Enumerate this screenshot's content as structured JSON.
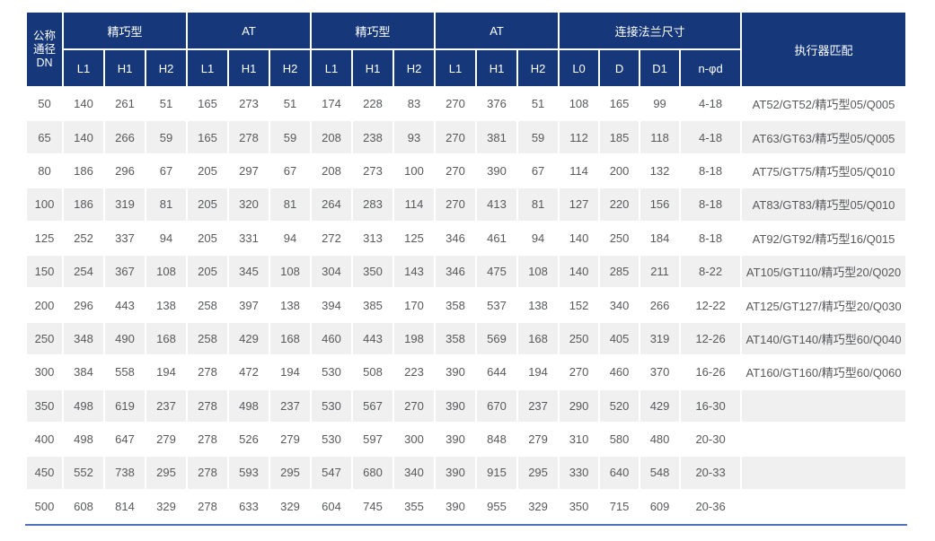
{
  "colors": {
    "header_bg": "#16387a",
    "header_text": "#ffffff",
    "stripe_bg": "#f0f0f0",
    "cell_text": "#58595b",
    "bottom_rule": "#4f74bd"
  },
  "table": {
    "dn_label": "公称\n通径\nDN",
    "actuator_label": "执行器匹配",
    "groups": [
      {
        "label": "精巧型",
        "cols": [
          "L1",
          "H1",
          "H2"
        ]
      },
      {
        "label": "AT",
        "cols": [
          "L1",
          "H1",
          "H2"
        ]
      },
      {
        "label": "精巧型",
        "cols": [
          "L1",
          "H1",
          "H2"
        ]
      },
      {
        "label": "AT",
        "cols": [
          "L1",
          "H1",
          "H2"
        ]
      },
      {
        "label": "连接法兰尺寸",
        "cols": [
          "L0",
          "D",
          "D1",
          "n-φd"
        ]
      }
    ],
    "rows": [
      [
        "50",
        "140",
        "261",
        "51",
        "165",
        "273",
        "51",
        "174",
        "228",
        "83",
        "270",
        "376",
        "51",
        "108",
        "165",
        "99",
        "4-18",
        "AT52/GT52/精巧型05/Q005"
      ],
      [
        "65",
        "140",
        "266",
        "59",
        "165",
        "278",
        "59",
        "208",
        "238",
        "93",
        "270",
        "381",
        "59",
        "112",
        "185",
        "118",
        "4-18",
        "AT63/GT63/精巧型05/Q005"
      ],
      [
        "80",
        "186",
        "296",
        "67",
        "205",
        "297",
        "67",
        "208",
        "273",
        "100",
        "270",
        "390",
        "67",
        "114",
        "200",
        "132",
        "8-18",
        "AT75/GT75/精巧型05/Q010"
      ],
      [
        "100",
        "186",
        "319",
        "81",
        "205",
        "320",
        "81",
        "264",
        "283",
        "114",
        "270",
        "413",
        "81",
        "127",
        "220",
        "156",
        "8-18",
        "AT83/GT83/精巧型05/Q010"
      ],
      [
        "125",
        "252",
        "337",
        "94",
        "205",
        "331",
        "94",
        "272",
        "313",
        "125",
        "346",
        "461",
        "94",
        "140",
        "250",
        "184",
        "8-18",
        "AT92/GT92/精巧型16/Q015"
      ],
      [
        "150",
        "254",
        "367",
        "108",
        "205",
        "345",
        "108",
        "304",
        "350",
        "143",
        "346",
        "475",
        "108",
        "140",
        "285",
        "211",
        "8-22",
        "AT105/GT110/精巧型20/Q020"
      ],
      [
        "200",
        "296",
        "443",
        "138",
        "258",
        "397",
        "138",
        "394",
        "385",
        "170",
        "358",
        "537",
        "138",
        "152",
        "340",
        "266",
        "12-22",
        "AT125/GT127/精巧型20/Q030"
      ],
      [
        "250",
        "348",
        "490",
        "168",
        "258",
        "429",
        "168",
        "460",
        "443",
        "198",
        "358",
        "569",
        "168",
        "250",
        "405",
        "319",
        "12-26",
        "AT140/GT140/精巧型60/Q040"
      ],
      [
        "300",
        "384",
        "558",
        "194",
        "278",
        "472",
        "194",
        "530",
        "508",
        "223",
        "390",
        "644",
        "194",
        "270",
        "460",
        "370",
        "16-26",
        "AT160/GT160/精巧型60/Q060"
      ],
      [
        "350",
        "498",
        "619",
        "237",
        "278",
        "498",
        "237",
        "530",
        "567",
        "270",
        "390",
        "670",
        "237",
        "290",
        "520",
        "429",
        "16-30",
        ""
      ],
      [
        "400",
        "498",
        "647",
        "279",
        "278",
        "526",
        "279",
        "530",
        "597",
        "300",
        "390",
        "848",
        "279",
        "310",
        "580",
        "480",
        "20-30",
        ""
      ],
      [
        "450",
        "552",
        "738",
        "295",
        "278",
        "593",
        "295",
        "547",
        "680",
        "340",
        "390",
        "915",
        "295",
        "330",
        "640",
        "548",
        "20-33",
        ""
      ],
      [
        "500",
        "608",
        "814",
        "329",
        "278",
        "633",
        "329",
        "604",
        "745",
        "355",
        "390",
        "955",
        "329",
        "350",
        "715",
        "609",
        "20-36",
        ""
      ]
    ]
  }
}
